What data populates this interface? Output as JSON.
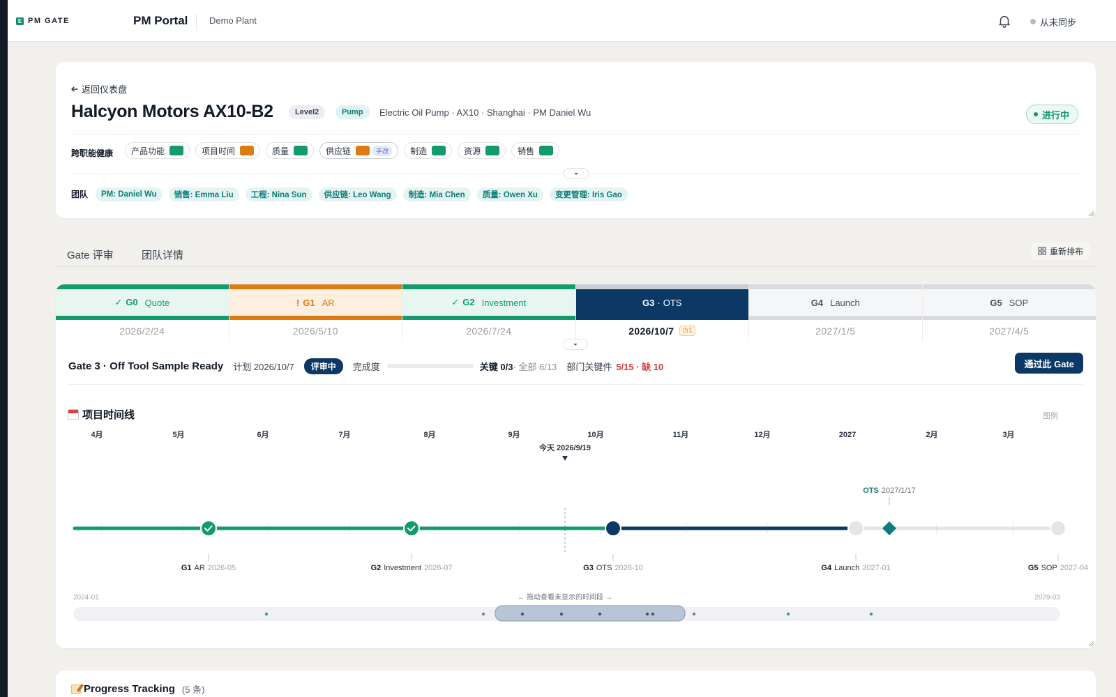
{
  "header": {
    "logo_text": "PM GATE",
    "logo_mark": "E",
    "app_title": "PM Portal",
    "plant": "Demo Plant",
    "sync_status": "从未同步"
  },
  "project": {
    "back_label": "返回仪表盘",
    "title": "Halcyon Motors AX10-B2",
    "level": "Level2",
    "category": "Pump",
    "meta": "Electric Oil Pump · AX10 · Shanghai · PM Daniel Wu",
    "status": "进行中",
    "health_label": "跨职能健康",
    "health": [
      {
        "label": "产品功能",
        "color": "#139b6f"
      },
      {
        "label": "项目时间",
        "color": "#dc7b12"
      },
      {
        "label": "质量",
        "color": "#139b6f"
      },
      {
        "label": "供应链",
        "color": "#dc7b12",
        "tag": "手改"
      },
      {
        "label": "制造",
        "color": "#139b6f"
      },
      {
        "label": "资源",
        "color": "#139b6f"
      },
      {
        "label": "销售",
        "color": "#139b6f"
      }
    ],
    "team_label": "团队",
    "team": [
      "PM: Daniel Wu",
      "销售: Emma Liu",
      "工程: Nina Sun",
      "供应链: Leo Wang",
      "制造: Mia Chen",
      "质量: Owen Xu",
      "变更管理: Iris Gao"
    ]
  },
  "tabs": {
    "gate_review": "Gate 评审",
    "team_details": "团队详情",
    "relayout": "重新排布"
  },
  "gates": [
    {
      "prefix": "✓",
      "code": "G0",
      "name": "Quote",
      "date": "2026/2/24",
      "state": "done"
    },
    {
      "prefix": "!",
      "code": "G1",
      "name": "AR",
      "date": "2026/5/10",
      "state": "warn"
    },
    {
      "prefix": "✓",
      "code": "G2",
      "name": "Investment",
      "date": "2026/7/24",
      "state": "done"
    },
    {
      "prefix": "",
      "code": "G3",
      "name": "OTS",
      "date": "2026/10/7",
      "state": "cur",
      "warn_count": "1"
    },
    {
      "prefix": "",
      "code": "G4",
      "name": "Launch",
      "date": "2027/1/5",
      "state": "fut"
    },
    {
      "prefix": "",
      "code": "G5",
      "name": "SOP",
      "date": "2027/4/5",
      "state": "fut"
    }
  ],
  "gate_detail": {
    "title": "Gate 3 · Off Tool Sample Ready",
    "plan": "计划 2026/10/7",
    "status": "评审中",
    "completion_label": "完成度",
    "completion": 0,
    "key_done": "关键 0/3",
    "all_done": "· 全部 6/13",
    "dept_label": "部门关键件",
    "dept_value": "5/15 · 缺 10",
    "pass_button": "通过此 Gate"
  },
  "timeline": {
    "title": "项目时间线",
    "legend_label": "图例",
    "months": [
      "4月",
      "5月",
      "6月",
      "7月",
      "8月",
      "9月",
      "10月",
      "11月",
      "12月",
      "2027",
      "2月",
      "3月"
    ],
    "today_label": "今天 2026/9/19",
    "ots_label": "OTS",
    "ots_date": "2027/1/17",
    "milestones": [
      {
        "code": "G1",
        "name": "AR",
        "date": "2026-05",
        "state": "done"
      },
      {
        "code": "G2",
        "name": "Investment",
        "date": "2026-07",
        "state": "done"
      },
      {
        "code": "G3",
        "name": "OTS",
        "date": "2026-10",
        "state": "current"
      },
      {
        "code": "G4",
        "name": "Launch",
        "date": "2027-01",
        "state": "future"
      },
      {
        "code": "G5",
        "name": "SOP",
        "date": "2027-04",
        "state": "future"
      }
    ],
    "range_start": "2024-01",
    "range_end": "2029-03",
    "scroll_hint": "← 拖动查看未显示的时间段 →"
  },
  "progress": {
    "title": "Progress Tracking",
    "count": "(5 条)"
  },
  "colors": {
    "done": "#139b6f",
    "warn": "#dc7b12",
    "current": "#0c3865",
    "future": "#d9dbe0",
    "ots_marker": "#0d7d7a"
  }
}
